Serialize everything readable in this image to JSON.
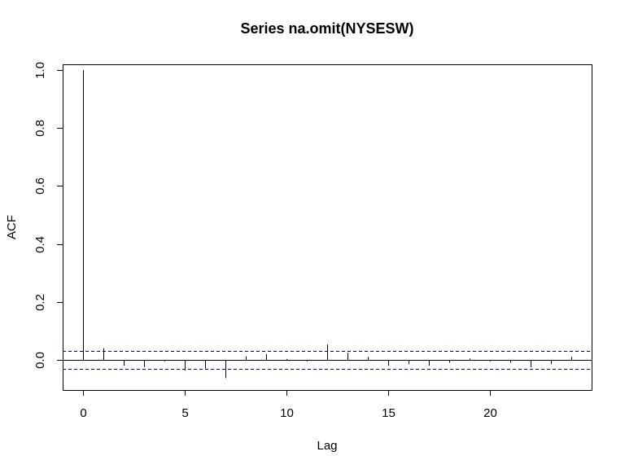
{
  "chart_data": {
    "type": "bar",
    "title": "Series  na.omit(NYSESW)",
    "xlabel": "Lag",
    "ylabel": "ACF",
    "xlim": [
      -0.98,
      24.98
    ],
    "ylim": [
      -0.104,
      1.02
    ],
    "x_ticks": [
      0,
      5,
      10,
      15,
      20
    ],
    "y_ticks": [
      0.0,
      0.2,
      0.4,
      0.6,
      0.8,
      1.0
    ],
    "x_tick_labels": [
      "0",
      "5",
      "10",
      "15",
      "20"
    ],
    "y_tick_labels": [
      "0.0",
      "0.2",
      "0.4",
      "0.6",
      "0.8",
      "1.0"
    ],
    "confidence_bound": 0.031,
    "confidence_line_style": "dashed",
    "confidence_line_color": "#000080",
    "bar_color": "#000000",
    "grid": false,
    "lags": [
      0,
      1,
      2,
      3,
      4,
      5,
      6,
      7,
      8,
      9,
      10,
      11,
      12,
      13,
      14,
      15,
      16,
      17,
      18,
      19,
      20,
      21,
      22,
      23,
      24
    ],
    "values": [
      1.0,
      0.04,
      -0.02,
      -0.025,
      -0.005,
      -0.037,
      -0.03,
      -0.063,
      0.012,
      0.02,
      0.003,
      -0.005,
      0.053,
      0.025,
      0.01,
      -0.02,
      -0.015,
      -0.02,
      -0.01,
      0.005,
      -0.005,
      -0.01,
      -0.025,
      -0.015,
      0.01
    ]
  }
}
